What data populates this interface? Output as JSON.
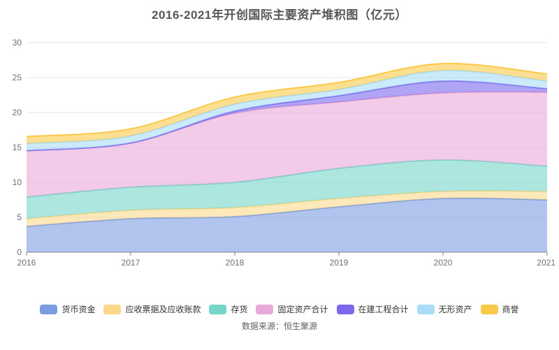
{
  "page": {
    "title": "2016-2021年开创国际主要资产堆积图（亿元）",
    "source_note": "数据来源：恒生聚源"
  },
  "axis_colors": {
    "grid_line": "#E0E6F1",
    "axis_line": "#81858c",
    "tick_label": "#6E7079"
  },
  "chart_data": {
    "type": "area",
    "stacked": true,
    "smooth": true,
    "title": "2016-2021年开创国际主要资产堆积图（亿元）",
    "x": [
      "2016",
      "2017",
      "2018",
      "2019",
      "2020",
      "2021"
    ],
    "series": [
      {
        "name": "货币资金",
        "color": "#7B9CE1",
        "values": [
          3.7,
          4.8,
          5.1,
          6.5,
          7.7,
          7.5
        ]
      },
      {
        "name": "应收票据及应收账款",
        "color": "#FBD88A",
        "values": [
          1.1,
          1.2,
          1.3,
          1.2,
          1.0,
          1.2
        ]
      },
      {
        "name": "存货",
        "color": "#76D5C9",
        "values": [
          3.1,
          3.3,
          3.6,
          4.3,
          4.5,
          3.6
        ]
      },
      {
        "name": "固定资产合计",
        "color": "#E7A9D8",
        "values": [
          6.6,
          6.3,
          9.9,
          9.5,
          9.6,
          10.6
        ]
      },
      {
        "name": "在建工程合计",
        "color": "#7B68EE",
        "values": [
          0.05,
          0.05,
          0.3,
          0.9,
          1.7,
          0.5
        ]
      },
      {
        "name": "无形资产",
        "color": "#A8DCF7",
        "values": [
          1.0,
          1.0,
          1.0,
          0.9,
          1.5,
          1.1
        ]
      },
      {
        "name": "商誉",
        "color": "#FBC94A",
        "values": [
          1.0,
          1.0,
          1.0,
          1.0,
          1.0,
          1.0
        ]
      }
    ],
    "ylim": [
      0,
      30
    ],
    "yticks": [
      0,
      5,
      10,
      15,
      20,
      25,
      30
    ],
    "xlabel": "",
    "ylabel": "",
    "grid": true,
    "legend_position": "bottom",
    "area_opacity": 0.6,
    "line_width": 2
  }
}
